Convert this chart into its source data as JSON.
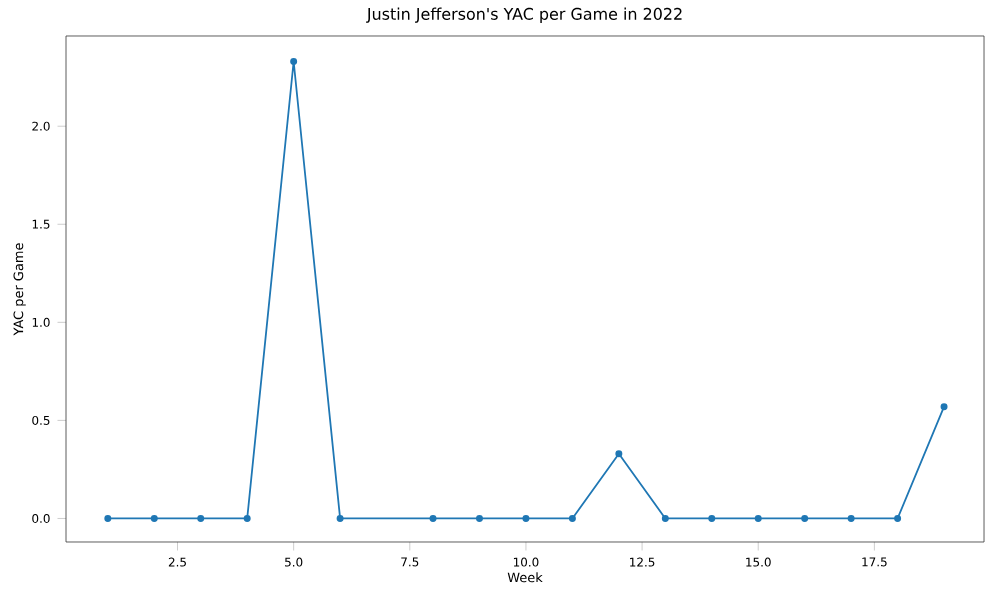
{
  "chart_data": {
    "type": "line",
    "title": "Justin Jefferson's YAC per Game in 2022",
    "xlabel": "Week",
    "ylabel": "YAC per Game",
    "x": [
      1,
      2,
      3,
      4,
      5,
      6,
      8,
      9,
      10,
      11,
      12,
      13,
      14,
      15,
      16,
      17,
      18,
      19
    ],
    "values": [
      0,
      0,
      0,
      0,
      2.33,
      0,
      0,
      0,
      0,
      0,
      0.33,
      0,
      0,
      0,
      0,
      0,
      0,
      0.57
    ],
    "color": "#1f77b4",
    "marker": "circle",
    "line_style": "solid",
    "grid": false,
    "xlim": [
      0.1,
      19.86
    ],
    "ylim": [
      -0.12,
      2.46
    ],
    "xticks": [
      {
        "value": 2.5,
        "label": "2.5"
      },
      {
        "value": 5,
        "label": "5.0"
      },
      {
        "value": 7.5,
        "label": "7.5"
      },
      {
        "value": 10,
        "label": "10.0"
      },
      {
        "value": 12.5,
        "label": "12.5"
      },
      {
        "value": 15,
        "label": "15.0"
      },
      {
        "value": 17.5,
        "label": "17.5"
      }
    ],
    "yticks": [
      {
        "value": 0,
        "label": "0.0"
      },
      {
        "value": 0.5,
        "label": "0.5"
      },
      {
        "value": 1,
        "label": "1.0"
      },
      {
        "value": 1.5,
        "label": "1.5"
      },
      {
        "value": 2,
        "label": "2.0"
      }
    ]
  }
}
